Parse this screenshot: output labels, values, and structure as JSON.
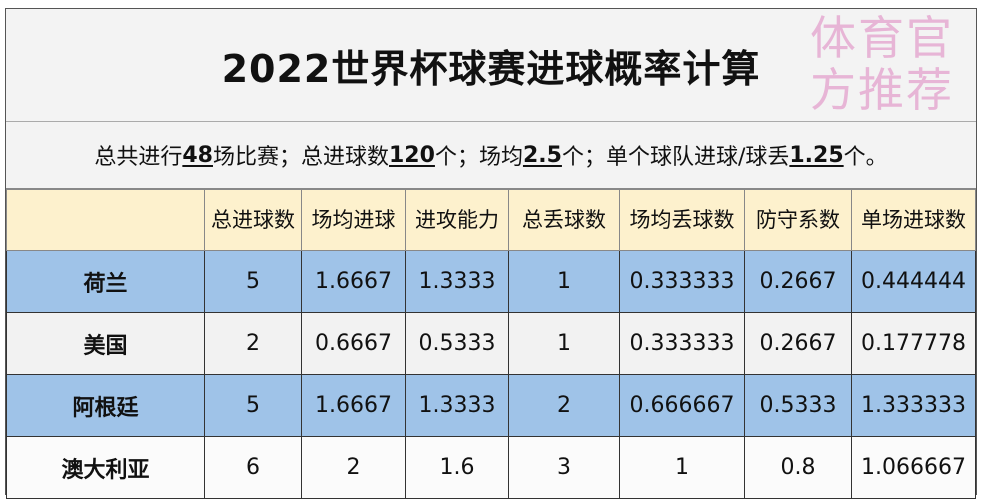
{
  "title": "2022世界杯球赛进球概率计算",
  "summary": {
    "p1": "总共进行",
    "games": "48",
    "p2": "场比赛；总进球数",
    "goals": "120",
    "p3": "个；场均",
    "avg": "2.5",
    "p4": "个；单个球队进球/球丢",
    "team_avg": "1.25",
    "p5": "个。"
  },
  "headers": [
    "",
    "总进球数",
    "场均进球",
    "进攻能力",
    "总丢球数",
    "场均丢球数",
    "防守系数",
    "单场进球数"
  ],
  "rows": [
    {
      "team": "荷兰",
      "cells": [
        "5",
        "1.6667",
        "1.3333",
        "1",
        "0.333333",
        "0.2667",
        "0.444444"
      ]
    },
    {
      "team": "美国",
      "cells": [
        "2",
        "0.6667",
        "0.5333",
        "1",
        "0.333333",
        "0.2667",
        "0.177778"
      ]
    },
    {
      "team": "阿根廷",
      "cells": [
        "5",
        "1.6667",
        "1.3333",
        "2",
        "0.666667",
        "0.5333",
        "1.333333"
      ]
    },
    {
      "team": "澳大利亚",
      "cells": [
        "6",
        "2",
        "1.6",
        "3",
        "1",
        "0.8",
        "1.066667"
      ]
    }
  ],
  "watermark": "体育官方推荐",
  "colors": {
    "header_bg": "#fdf1cd",
    "blue_row": "#9fc3e8",
    "gray_row": "#f2f2f2"
  }
}
